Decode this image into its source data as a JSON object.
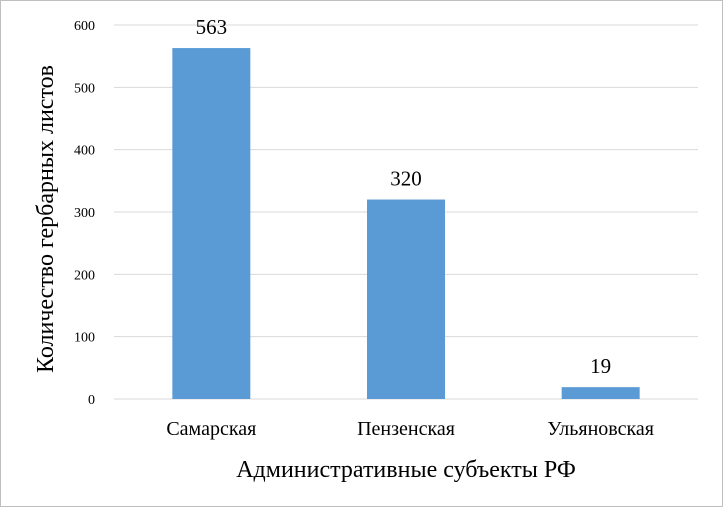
{
  "chart_data": {
    "type": "bar",
    "categories": [
      "Самарская",
      "Пензенская",
      "Ульяновская"
    ],
    "values": [
      563,
      320,
      19
    ],
    "data_labels": [
      "563",
      "320",
      "19"
    ],
    "xlabel": "Административные субъекты РФ",
    "ylabel": "Количество гербарных листов",
    "ylim": [
      0,
      600
    ],
    "yticks": [
      0,
      100,
      200,
      300,
      400,
      500,
      600
    ],
    "grid": true,
    "legend": "none",
    "bar_color": "#5b9bd5",
    "grid_color": "#d9d9d9"
  }
}
